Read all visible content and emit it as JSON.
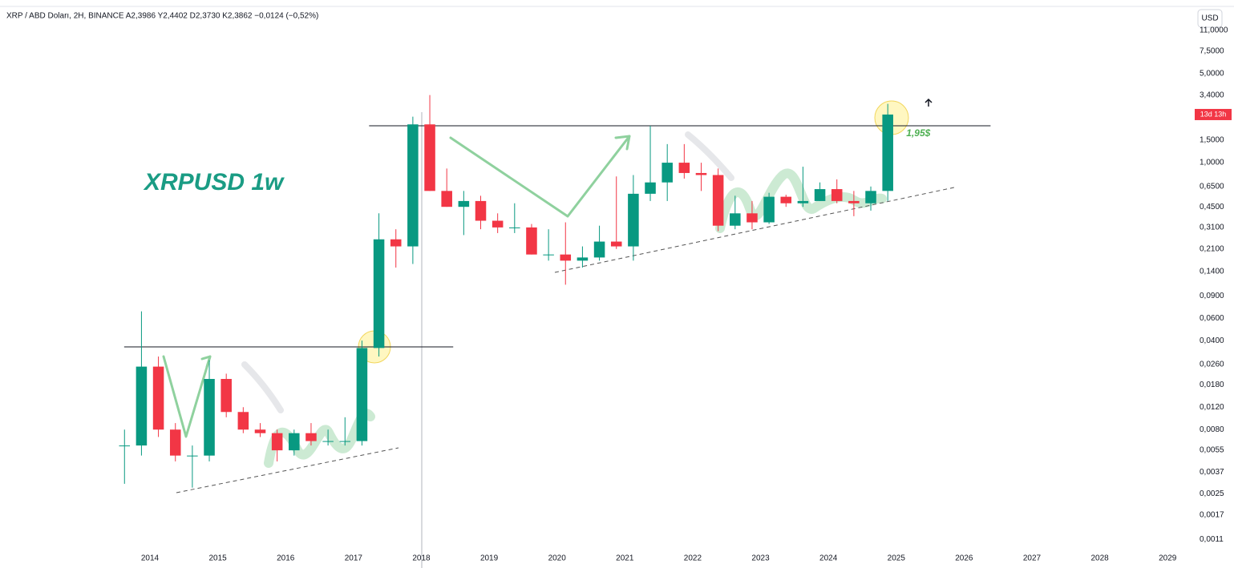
{
  "chart_data": {
    "type": "candlestick",
    "header": "XRP / ABD Doları, 2H, BINANCE  A2,3986 Y2,4402 D2,3730 K2,3862 −0,0124 (−0,52%)",
    "title": "XRPUSD 1w",
    "currency": "USD",
    "countdown": "13d 13h",
    "log_scale": true,
    "grid": false,
    "up_color": "#089981",
    "down_color": "#f23645",
    "x": [
      2013.5,
      2013.75,
      2014.0,
      2014.25,
      2014.5,
      2014.75,
      2015.0,
      2015.25,
      2015.5,
      2015.75,
      2016.0,
      2016.25,
      2016.5,
      2016.75,
      2017.0,
      2017.25,
      2017.5,
      2017.75,
      2018.0,
      2018.25,
      2018.5,
      2018.75,
      2019.0,
      2019.25,
      2019.5,
      2019.75,
      2020.0,
      2020.25,
      2020.5,
      2020.75,
      2021.0,
      2021.25,
      2021.5,
      2021.75,
      2022.0,
      2022.25,
      2022.5,
      2022.75,
      2023.0,
      2023.25,
      2023.5,
      2023.75,
      2024.0,
      2024.25,
      2024.5,
      2024.75
    ],
    "open": [
      0.006,
      0.006,
      0.025,
      0.008,
      0.005,
      0.005,
      0.02,
      0.011,
      0.008,
      0.0075,
      0.0055,
      0.0075,
      0.0065,
      0.0065,
      0.0065,
      0.035,
      0.25,
      0.22,
      2.0,
      0.6,
      0.45,
      0.5,
      0.35,
      0.31,
      0.31,
      0.19,
      0.19,
      0.17,
      0.18,
      0.24,
      0.22,
      0.57,
      0.7,
      1.0,
      0.83,
      0.8,
      0.32,
      0.4,
      0.34,
      0.54,
      0.48,
      0.5,
      0.62,
      0.5,
      0.48,
      0.6
    ],
    "high": [
      0.008,
      0.068,
      0.03,
      0.009,
      0.006,
      0.028,
      0.022,
      0.012,
      0.009,
      0.008,
      0.008,
      0.009,
      0.008,
      0.01,
      0.04,
      0.4,
      0.3,
      2.3,
      3.4,
      0.9,
      0.6,
      0.55,
      0.4,
      0.48,
      0.33,
      0.3,
      0.34,
      0.22,
      0.32,
      0.78,
      0.8,
      1.95,
      1.4,
      1.4,
      1.0,
      0.9,
      0.55,
      0.5,
      0.58,
      0.56,
      0.93,
      0.7,
      0.74,
      0.6,
      0.65,
      2.9
    ],
    "low": [
      0.003,
      0.005,
      0.007,
      0.0045,
      0.0028,
      0.0045,
      0.01,
      0.0075,
      0.007,
      0.0045,
      0.005,
      0.006,
      0.006,
      0.006,
      0.006,
      0.03,
      0.15,
      0.16,
      0.6,
      0.45,
      0.27,
      0.3,
      0.28,
      0.28,
      0.19,
      0.17,
      0.11,
      0.15,
      0.17,
      0.21,
      0.17,
      0.5,
      0.5,
      0.75,
      0.6,
      0.29,
      0.3,
      0.3,
      0.33,
      0.45,
      0.45,
      0.5,
      0.48,
      0.38,
      0.42,
      0.5
    ],
    "close": [
      0.006,
      0.025,
      0.008,
      0.005,
      0.005,
      0.02,
      0.011,
      0.008,
      0.0075,
      0.0055,
      0.0075,
      0.0065,
      0.0065,
      0.0065,
      0.035,
      0.25,
      0.22,
      2.0,
      0.6,
      0.45,
      0.5,
      0.35,
      0.31,
      0.31,
      0.19,
      0.19,
      0.17,
      0.18,
      0.24,
      0.22,
      0.57,
      0.7,
      1.0,
      0.83,
      0.8,
      0.32,
      0.4,
      0.34,
      0.54,
      0.48,
      0.5,
      0.62,
      0.5,
      0.48,
      0.6,
      2.39
    ],
    "levels": [
      {
        "value": 0.0357,
        "x": [
          2013.62,
          2018.47
        ]
      },
      {
        "value": 1.95,
        "x": [
          2017.23,
          2026.39
        ],
        "label": "1,95$"
      }
    ],
    "xlim": [
      2011.79,
      2029.34
    ],
    "xticks": [
      2014,
      2015,
      2016,
      2017,
      2018,
      2019,
      2020,
      2021,
      2022,
      2023,
      2024,
      2025,
      2026,
      2027,
      2028,
      2029
    ],
    "ylim": [
      0.000913,
      16.9
    ],
    "yticks": [
      {
        "value": 11,
        "label": "11,0000"
      },
      {
        "value": 7.5,
        "label": "7,5000"
      },
      {
        "value": 5,
        "label": "5,0000"
      },
      {
        "value": 3.4,
        "label": "3,4000"
      },
      {
        "value": 1.5,
        "label": "1,5000"
      },
      {
        "value": 1,
        "label": "1,0000"
      },
      {
        "value": 0.65,
        "label": "0,6500"
      },
      {
        "value": 0.45,
        "label": "0,4500"
      },
      {
        "value": 0.31,
        "label": "0,3100"
      },
      {
        "value": 0.21,
        "label": "0,2100"
      },
      {
        "value": 0.14,
        "label": "0,1400"
      },
      {
        "value": 0.09,
        "label": "0,0900"
      },
      {
        "value": 0.06,
        "label": "0,0600"
      },
      {
        "value": 0.04,
        "label": "0,0400"
      },
      {
        "value": 0.026,
        "label": "0,0260"
      },
      {
        "value": 0.018,
        "label": "0,0180"
      },
      {
        "value": 0.012,
        "label": "0,0120"
      },
      {
        "value": 0.008,
        "label": "0,0080"
      },
      {
        "value": 0.0055,
        "label": "0,0055"
      },
      {
        "value": 0.0037,
        "label": "0,0037"
      },
      {
        "value": 0.0025,
        "label": "0,0025"
      },
      {
        "value": 0.0017,
        "label": "0,0017"
      },
      {
        "value": 0.0011,
        "label": "0,0011"
      }
    ]
  }
}
